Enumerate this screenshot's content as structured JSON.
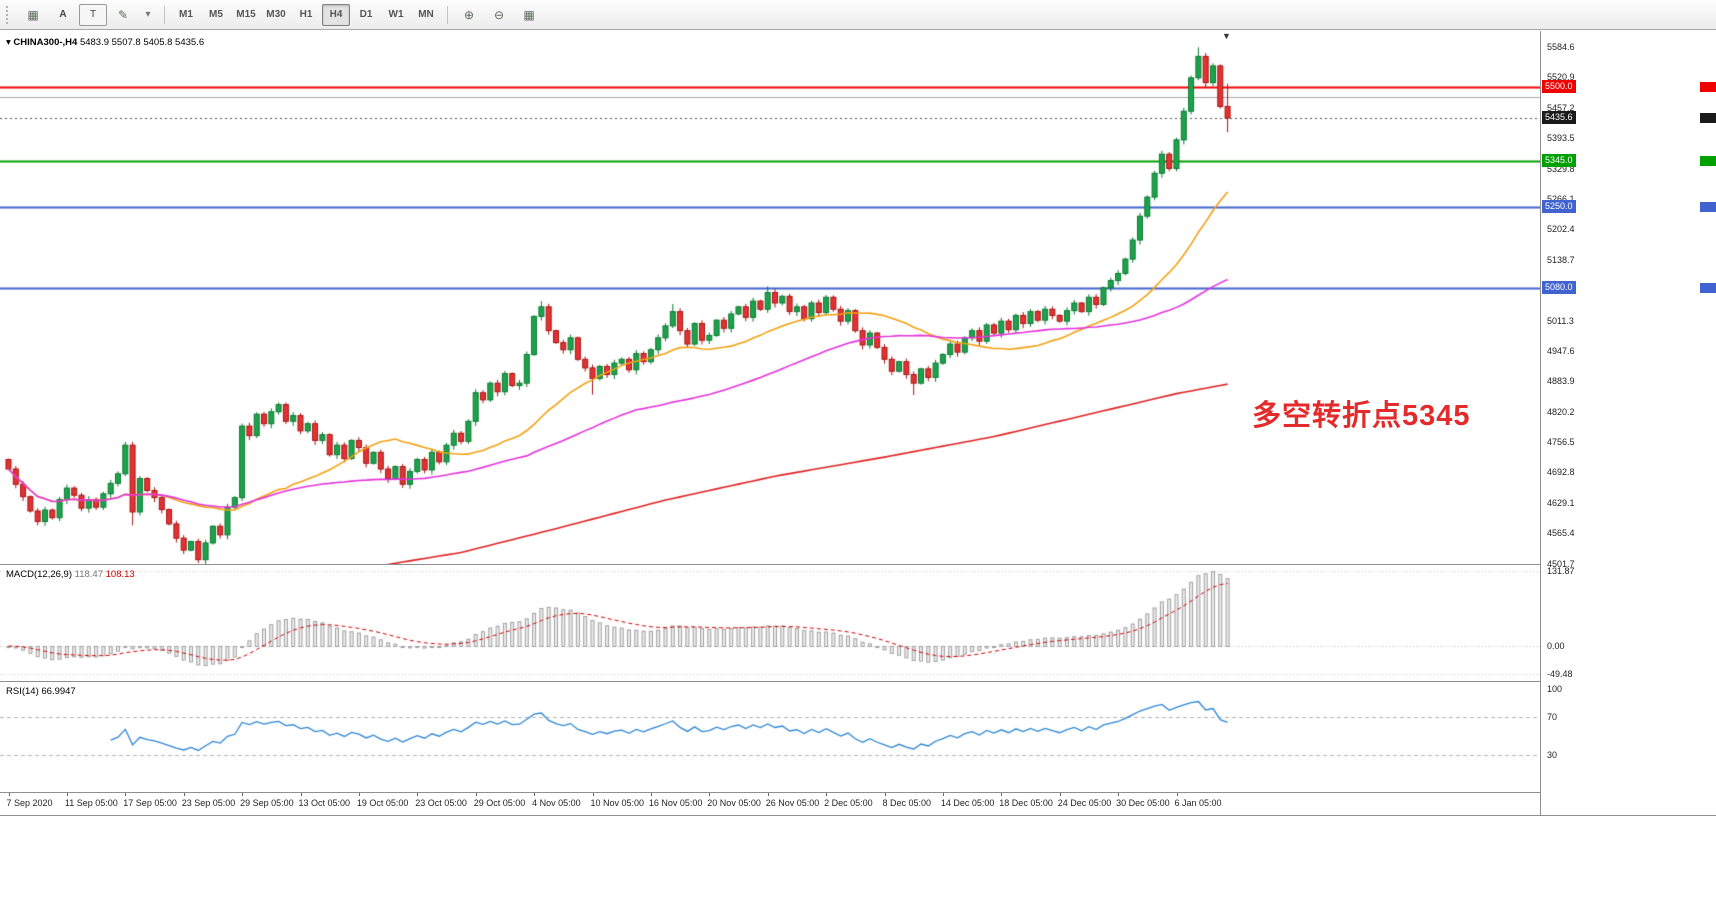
{
  "toolbar": {
    "left_icons": [
      {
        "name": "charts-grid-icon",
        "glyph": "▦"
      },
      {
        "name": "annotate-text-button",
        "glyph": "A"
      },
      {
        "name": "text-tool-button",
        "glyph": "T"
      },
      {
        "name": "draw-tools-icon",
        "glyph": "✎"
      },
      {
        "name": "draw-tools-dropdown-icon",
        "glyph": "▾"
      }
    ],
    "timeframes": [
      "M1",
      "M5",
      "M15",
      "M30",
      "H1",
      "H4",
      "D1",
      "W1",
      "MN"
    ],
    "active_timeframe": "H4",
    "right_icons": [
      {
        "name": "zoom-in-icon",
        "glyph": "⊕"
      },
      {
        "name": "zoom-out-icon",
        "glyph": "⊖"
      },
      {
        "name": "tile-windows-icon",
        "glyph": "▦"
      }
    ]
  },
  "chart": {
    "header": {
      "arrow": "▾",
      "symbol_period": "CHINA300-,H4",
      "ohlc": "5483.9 5507.8 5405.8 5435.6"
    },
    "annotation": "多空转折点5345",
    "levels": [
      {
        "price": 5500,
        "label": "5500.0",
        "color": "#f00000",
        "width": 2
      },
      {
        "price": 5480,
        "color": "#a8a8a8",
        "width": 1
      },
      {
        "price": 5435.6,
        "label": "5435.6",
        "color": "#555555",
        "width": 1,
        "style": "dotted",
        "badge": "#1a1a1a"
      },
      {
        "price": 5345,
        "label": "5345.0",
        "color": "#00a000",
        "width": 2
      },
      {
        "price": 5250,
        "label": "5250.0",
        "color": "#4163cf",
        "width": 2
      },
      {
        "price": 5080,
        "label": "5080.0",
        "color": "#4163cf",
        "width": 2
      }
    ],
    "y_ticks": [
      "5584.6",
      "5520.9",
      "5457.2",
      "5393.5",
      "5329.8",
      "5266.1",
      "5202.4",
      "5138.7",
      "5011.3",
      "4947.6",
      "4883.9",
      "4820.2",
      "4756.5",
      "4692.8",
      "4629.1",
      "4565.4",
      "4501.7"
    ],
    "x_labels": [
      "7 Sep 2020",
      "11 Sep 05:00",
      "17 Sep 05:00",
      "23 Sep 05:00",
      "29 Sep 05:00",
      "13 Oct 05:00",
      "19 Oct 05:00",
      "23 Oct 05:00",
      "29 Oct 05:00",
      "4 Nov 05:00",
      "10 Nov 05:00",
      "16 Nov 05:00",
      "20 Nov 05:00",
      "26 Nov 05:00",
      "2 Dec 05:00",
      "8 Dec 05:00",
      "14 Dec 05:00",
      "18 Dec 05:00",
      "24 Dec 05:00",
      "30 Dec 05:00",
      "6 Jan 05:00"
    ]
  },
  "macd": {
    "title": "MACD(12,26,9)",
    "value_main": "118.47",
    "value_signal": "108.13",
    "axis_max": "131.87",
    "axis_zero": "0.00",
    "axis_min": "-49.48"
  },
  "rsi": {
    "title": "RSI(14)",
    "value": "66.9947",
    "axis": [
      "100",
      "70",
      "30"
    ]
  },
  "chart_data": {
    "type": "candlestick",
    "symbol": "CHINA300-",
    "timeframe": "H4",
    "visible_bar_ohlc": {
      "open": 5483.9,
      "high": 5507.8,
      "low": 5405.8,
      "close": 5435.6
    },
    "price_axis": {
      "top": 5614,
      "bottom": 4503
    },
    "horizontal_levels": [
      5500,
      5345,
      5250,
      5080
    ],
    "current_price": 5435.6,
    "first_open": 4720,
    "closes": [
      4700,
      4668,
      4642,
      4612,
      4590,
      4614,
      4598,
      4636,
      4660,
      4645,
      4618,
      4636,
      4620,
      4648,
      4670,
      4690,
      4750,
      4610,
      4680,
      4655,
      4640,
      4615,
      4585,
      4555,
      4530,
      4548,
      4510,
      4545,
      4580,
      4562,
      4620,
      4640,
      4790,
      4770,
      4815,
      4795,
      4820,
      4835,
      4800,
      4812,
      4780,
      4795,
      4760,
      4772,
      4730,
      4750,
      4722,
      4760,
      4745,
      4712,
      4735,
      4700,
      4680,
      4705,
      4668,
      4695,
      4720,
      4698,
      4735,
      4715,
      4750,
      4775,
      4758,
      4800,
      4860,
      4845,
      4880,
      4862,
      4900,
      4875,
      4880,
      4940,
      5020,
      5040,
      4990,
      4965,
      4950,
      4975,
      4930,
      4912,
      4890,
      4915,
      4898,
      4922,
      4930,
      4908,
      4942,
      4925,
      4950,
      4975,
      5000,
      5030,
      4990,
      4962,
      5005,
      4970,
      4980,
      5012,
      4995,
      5025,
      5040,
      5018,
      5052,
      5035,
      5070,
      5048,
      5062,
      5030,
      5040,
      5015,
      5048,
      5028,
      5060,
      5035,
      5010,
      5032,
      4990,
      4960,
      4985,
      4955,
      4930,
      4905,
      4925,
      4898,
      4880,
      4910,
      4892,
      4922,
      4940,
      4962,
      4945,
      4975,
      4990,
      4968,
      5002,
      4985,
      5010,
      4992,
      5022,
      5005,
      5030,
      5012,
      5035,
      5022,
      5010,
      5032,
      5048,
      5030,
      5060,
      5045,
      5080,
      5095,
      5110,
      5140,
      5180,
      5230,
      5270,
      5320,
      5360,
      5330,
      5390,
      5450,
      5520,
      5565,
      5510,
      5545,
      5460,
      5436
    ],
    "high_overrides": {
      "16": 4757,
      "73": 5052,
      "91": 5046,
      "104": 5083,
      "163": 5584,
      "167": 5508
    },
    "low_overrides": {
      "17": 4582,
      "26": 4503,
      "80": 4856,
      "124": 4855,
      "167": 5406
    },
    "ma_periods": {
      "fast": 22,
      "mid": 55
    },
    "ma_slow_points": [
      [
        50,
        4495
      ],
      [
        62,
        4525
      ],
      [
        75,
        4575
      ],
      [
        90,
        4635
      ],
      [
        105,
        4685
      ],
      [
        120,
        4725
      ],
      [
        135,
        4768
      ],
      [
        150,
        4822
      ],
      [
        160,
        4858
      ],
      [
        167,
        4878
      ]
    ],
    "indicator_values": {
      "macd": 118.47,
      "macd_signal": 108.13,
      "rsi": 66.9947
    },
    "macd_axis": {
      "max": 131.87,
      "min": -49.48
    },
    "rsi_levels": [
      70,
      30
    ],
    "colors": {
      "up": "#1ca24b",
      "up_dark": "#0c7a33",
      "down": "#e23232",
      "down_dark": "#a81414",
      "ma_fast": "#f3a112",
      "ma_mid": "#e533dd",
      "ma_slow": "#e02222",
      "macd_hist_fill": "#ececec",
      "macd_hist_stroke": "#a0a0a0",
      "macd_signal": "#d40000",
      "rsi_line": "#2e86d5",
      "level_dash": "#b5b5b5"
    }
  }
}
